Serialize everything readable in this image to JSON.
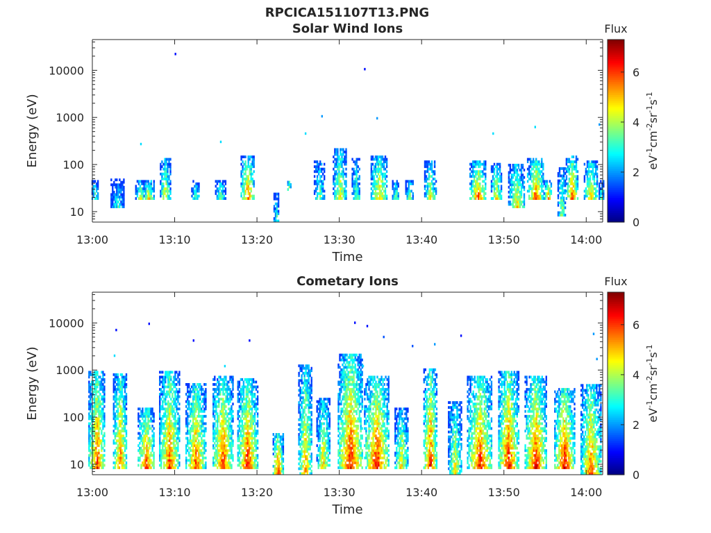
{
  "figure_title": "RPCICA151107T13.PNG",
  "chart_data": [
    {
      "type": "heatmap",
      "title": "Solar Wind Ions",
      "xlabel": "Time",
      "ylabel": "Energy (eV)",
      "x_ticks": [
        "13:00",
        "13:10",
        "13:20",
        "13:30",
        "13:40",
        "13:50",
        "14:00"
      ],
      "x_range": [
        "13:00",
        "14:02"
      ],
      "y_scale": "log",
      "y_ticks": [
        "10",
        "100",
        "1000",
        "10000"
      ],
      "y_range": [
        6,
        45000
      ],
      "colorbar": {
        "title": "Flux",
        "label": "eV-1cm-2sr-1s-1",
        "ticks": [
          "0",
          "2",
          "4",
          "6"
        ],
        "range": [
          0,
          7.3
        ],
        "colormap": "jet"
      },
      "bursts": [
        {
          "t": 0.3,
          "lo": 18,
          "hi": 45,
          "peak": 3.5,
          "span": 0.4
        },
        {
          "t": 3.0,
          "lo": 12,
          "hi": 45,
          "peak": 3.0,
          "span": 0.8
        },
        {
          "t": 5.8,
          "lo": 18,
          "hi": 45,
          "peak": 4.5,
          "span": 0.6
        },
        {
          "t": 6.8,
          "lo": 18,
          "hi": 45,
          "peak": 5.0,
          "span": 0.6
        },
        {
          "t": 8.8,
          "lo": 18,
          "hi": 130,
          "peak": 4.8,
          "span": 0.6
        },
        {
          "t": 12.5,
          "lo": 18,
          "hi": 45,
          "peak": 3.5,
          "span": 0.5
        },
        {
          "t": 15.5,
          "lo": 18,
          "hi": 45,
          "peak": 4.0,
          "span": 0.6
        },
        {
          "t": 18.8,
          "lo": 18,
          "hi": 150,
          "peak": 5.8,
          "span": 0.8
        },
        {
          "t": 22.3,
          "lo": 6,
          "hi": 25,
          "peak": 3.5,
          "span": 0.3
        },
        {
          "t": 23.8,
          "lo": 28,
          "hi": 45,
          "peak": 5.0,
          "span": 0.3
        },
        {
          "t": 27.5,
          "lo": 18,
          "hi": 110,
          "peak": 4.0,
          "span": 0.6
        },
        {
          "t": 30.0,
          "lo": 18,
          "hi": 200,
          "peak": 4.8,
          "span": 0.8
        },
        {
          "t": 32.0,
          "lo": 18,
          "hi": 130,
          "peak": 3.8,
          "span": 0.5
        },
        {
          "t": 34.8,
          "lo": 18,
          "hi": 150,
          "peak": 5.2,
          "span": 1.0
        },
        {
          "t": 36.8,
          "lo": 18,
          "hi": 45,
          "peak": 3.8,
          "span": 0.4
        },
        {
          "t": 38.5,
          "lo": 18,
          "hi": 45,
          "peak": 3.8,
          "span": 0.5
        },
        {
          "t": 41.0,
          "lo": 18,
          "hi": 110,
          "peak": 4.5,
          "span": 0.7
        },
        {
          "t": 46.8,
          "lo": 18,
          "hi": 110,
          "peak": 5.8,
          "span": 1.0
        },
        {
          "t": 49.0,
          "lo": 18,
          "hi": 100,
          "peak": 5.0,
          "span": 0.6
        },
        {
          "t": 51.5,
          "lo": 12,
          "hi": 100,
          "peak": 4.8,
          "span": 1.0
        },
        {
          "t": 53.8,
          "lo": 18,
          "hi": 130,
          "peak": 6.0,
          "span": 1.0
        },
        {
          "t": 55.3,
          "lo": 18,
          "hi": 45,
          "peak": 5.5,
          "span": 0.5
        },
        {
          "t": 57.0,
          "lo": 8,
          "hi": 80,
          "peak": 4.0,
          "span": 0.5
        },
        {
          "t": 58.2,
          "lo": 18,
          "hi": 150,
          "peak": 6.0,
          "span": 0.7
        },
        {
          "t": 60.5,
          "lo": 18,
          "hi": 110,
          "peak": 5.2,
          "span": 0.8
        },
        {
          "t": 61.8,
          "lo": 18,
          "hi": 45,
          "peak": 3.5,
          "span": 0.3
        }
      ],
      "specks": [
        {
          "t": 10.0,
          "e": 22000,
          "v": 1.0
        },
        {
          "t": 33.0,
          "e": 10500,
          "v": 1.0
        },
        {
          "t": 27.8,
          "e": 1050,
          "v": 2.0
        },
        {
          "t": 34.5,
          "e": 950,
          "v": 2.0
        },
        {
          "t": 25.8,
          "e": 450,
          "v": 2.5
        },
        {
          "t": 61.5,
          "e": 700,
          "v": 2.0
        },
        {
          "t": 48.6,
          "e": 450,
          "v": 2.5
        },
        {
          "t": 53.7,
          "e": 620,
          "v": 2.5
        },
        {
          "t": 5.8,
          "e": 270,
          "v": 2.5
        },
        {
          "t": 15.5,
          "e": 300,
          "v": 2.5
        }
      ]
    },
    {
      "type": "heatmap",
      "title": "Cometary Ions",
      "xlabel": "Time",
      "ylabel": "Energy (eV)",
      "x_ticks": [
        "13:00",
        "13:10",
        "13:20",
        "13:30",
        "13:40",
        "13:50",
        "14:00"
      ],
      "x_range": [
        "13:00",
        "14:02"
      ],
      "y_scale": "log",
      "y_ticks": [
        "10",
        "100",
        "1000",
        "10000"
      ],
      "y_range": [
        6,
        45000
      ],
      "colorbar": {
        "title": "Flux",
        "label": "eV-1cm-2sr-1s-1",
        "ticks": [
          "0",
          "2",
          "4",
          "6"
        ],
        "range": [
          0,
          7.3
        ],
        "colormap": "jet"
      },
      "bursts": [
        {
          "t": 0.5,
          "lo": 8,
          "hi": 900,
          "peak": 6.2,
          "span": 1.0
        },
        {
          "t": 3.3,
          "lo": 8,
          "hi": 800,
          "peak": 6.0,
          "span": 0.8
        },
        {
          "t": 6.5,
          "lo": 8,
          "hi": 150,
          "peak": 6.2,
          "span": 1.0
        },
        {
          "t": 9.3,
          "lo": 8,
          "hi": 900,
          "peak": 6.0,
          "span": 1.2
        },
        {
          "t": 12.5,
          "lo": 8,
          "hi": 500,
          "peak": 6.0,
          "span": 1.2
        },
        {
          "t": 15.8,
          "lo": 8,
          "hi": 700,
          "peak": 6.2,
          "span": 1.2
        },
        {
          "t": 18.8,
          "lo": 8,
          "hi": 600,
          "peak": 6.4,
          "span": 1.2
        },
        {
          "t": 22.5,
          "lo": 6,
          "hi": 45,
          "peak": 6.4,
          "span": 0.6
        },
        {
          "t": 25.8,
          "lo": 6,
          "hi": 1200,
          "peak": 5.5,
          "span": 0.8
        },
        {
          "t": 28.0,
          "lo": 8,
          "hi": 250,
          "peak": 5.0,
          "span": 0.8
        },
        {
          "t": 31.3,
          "lo": 8,
          "hi": 2000,
          "peak": 6.5,
          "span": 1.5
        },
        {
          "t": 34.5,
          "lo": 8,
          "hi": 700,
          "peak": 6.5,
          "span": 1.5
        },
        {
          "t": 37.5,
          "lo": 8,
          "hi": 150,
          "peak": 5.0,
          "span": 0.8
        },
        {
          "t": 41.0,
          "lo": 8,
          "hi": 1000,
          "peak": 6.5,
          "span": 0.8
        },
        {
          "t": 44.0,
          "lo": 6,
          "hi": 200,
          "peak": 4.8,
          "span": 0.8
        },
        {
          "t": 47.0,
          "lo": 8,
          "hi": 700,
          "peak": 6.3,
          "span": 1.5
        },
        {
          "t": 50.5,
          "lo": 8,
          "hi": 900,
          "peak": 6.6,
          "span": 1.2
        },
        {
          "t": 53.8,
          "lo": 8,
          "hi": 700,
          "peak": 6.5,
          "span": 1.3
        },
        {
          "t": 57.3,
          "lo": 8,
          "hi": 400,
          "peak": 6.6,
          "span": 1.2
        },
        {
          "t": 60.5,
          "lo": 6,
          "hi": 500,
          "peak": 6.0,
          "span": 1.2
        }
      ],
      "specks": [
        {
          "t": 2.8,
          "e": 7000,
          "v": 1.0
        },
        {
          "t": 6.8,
          "e": 9500,
          "v": 1.0
        },
        {
          "t": 12.2,
          "e": 4200,
          "v": 1.0
        },
        {
          "t": 19.0,
          "e": 4200,
          "v": 1.0
        },
        {
          "t": 31.8,
          "e": 10000,
          "v": 1.0
        },
        {
          "t": 33.3,
          "e": 8500,
          "v": 1.0
        },
        {
          "t": 35.3,
          "e": 5000,
          "v": 1.5
        },
        {
          "t": 38.8,
          "e": 3200,
          "v": 1.5
        },
        {
          "t": 44.7,
          "e": 5300,
          "v": 1.0
        },
        {
          "t": 41.5,
          "e": 3500,
          "v": 2.0
        },
        {
          "t": 60.8,
          "e": 5800,
          "v": 2.0
        },
        {
          "t": 61.2,
          "e": 1700,
          "v": 2.0
        },
        {
          "t": 2.6,
          "e": 2000,
          "v": 2.5
        },
        {
          "t": 16.0,
          "e": 1200,
          "v": 2.5
        },
        {
          "t": 32.8,
          "e": 1200,
          "v": 2.5
        }
      ]
    }
  ]
}
